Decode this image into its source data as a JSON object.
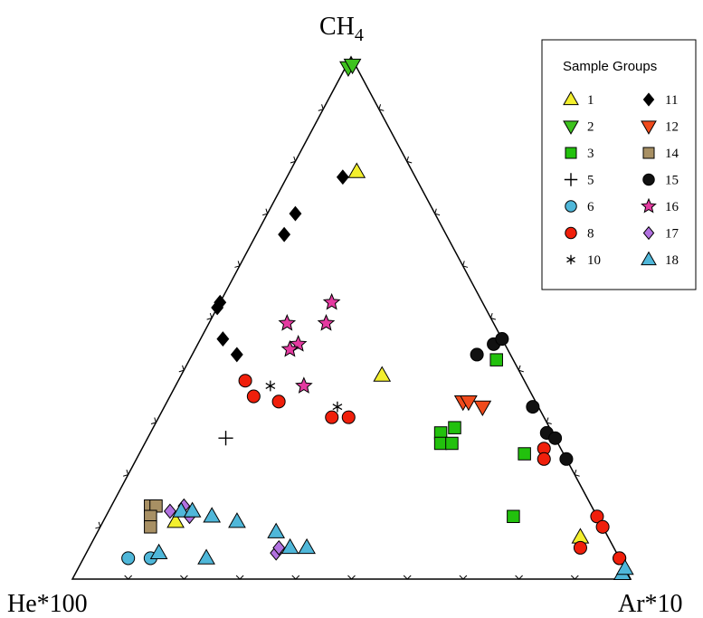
{
  "chart_data": {
    "type": "ternary-scatter",
    "apices": {
      "top": "CH4",
      "left": "He*100",
      "right": "Ar*10"
    },
    "legend": {
      "title": "Sample Groups",
      "placement": "top-right"
    },
    "series": [
      {
        "name": "1",
        "marker": "triangle-up",
        "color": "#f3ef2e",
        "points": [
          [
            0.78,
            0.1,
            0.12
          ],
          [
            0.39,
            0.25,
            0.36
          ],
          [
            0.11,
            0.76,
            0.13
          ],
          [
            0.08,
            0.05,
            0.87
          ]
        ]
      },
      {
        "name": "2",
        "marker": "triangle-down",
        "color": "#3ec21e",
        "points": [
          [
            0.98,
            0.015,
            0.005
          ],
          [
            0.985,
            0.005,
            0.01
          ]
        ]
      },
      {
        "name": "3",
        "marker": "square",
        "color": "#22c10d",
        "points": [
          [
            0.42,
            0.03,
            0.55
          ],
          [
            0.29,
            0.17,
            0.54
          ],
          [
            0.28,
            0.2,
            0.52
          ],
          [
            0.26,
            0.21,
            0.53
          ],
          [
            0.26,
            0.19,
            0.55
          ],
          [
            0.24,
            0.07,
            0.69
          ],
          [
            0.12,
            0.15,
            0.73
          ]
        ]
      },
      {
        "name": "5",
        "marker": "plus",
        "color": "#000000",
        "points": [
          [
            0.27,
            0.59,
            0.14
          ]
        ]
      },
      {
        "name": "6",
        "marker": "circle",
        "color": "#4fb7d9",
        "points": [
          [
            0.04,
            0.88,
            0.08
          ],
          [
            0.04,
            0.84,
            0.12
          ],
          [
            0.04,
            0.0,
            0.96
          ]
        ]
      },
      {
        "name": "8",
        "marker": "circle",
        "color": "#f01f0b",
        "points": [
          [
            0.38,
            0.5,
            0.12
          ],
          [
            0.35,
            0.5,
            0.15
          ],
          [
            0.34,
            0.46,
            0.2
          ],
          [
            0.31,
            0.38,
            0.31
          ],
          [
            0.31,
            0.35,
            0.34
          ],
          [
            0.25,
            0.03,
            0.72
          ],
          [
            0.23,
            0.04,
            0.73
          ],
          [
            0.12,
            0.0,
            0.88
          ],
          [
            0.1,
            0.0,
            0.9
          ],
          [
            0.06,
            0.06,
            0.88
          ],
          [
            0.04,
            0.0,
            0.96
          ]
        ]
      },
      {
        "name": "10",
        "marker": "star6",
        "color": "#000000",
        "points": [
          [
            0.37,
            0.46,
            0.17
          ],
          [
            0.33,
            0.36,
            0.31
          ]
        ]
      },
      {
        "name": "11",
        "marker": "diamond",
        "color": "#000000",
        "points": [
          [
            0.77,
            0.13,
            0.1
          ],
          [
            0.7,
            0.25,
            0.05
          ],
          [
            0.66,
            0.29,
            0.05
          ],
          [
            0.53,
            0.47,
            0.0
          ],
          [
            0.52,
            0.48,
            0.0
          ],
          [
            0.46,
            0.5,
            0.04
          ],
          [
            0.43,
            0.49,
            0.08
          ]
        ]
      },
      {
        "name": "12",
        "marker": "triangle-down",
        "color": "#f04a1c",
        "points": [
          [
            0.34,
            0.13,
            0.53
          ],
          [
            0.34,
            0.12,
            0.54
          ],
          [
            0.33,
            0.1,
            0.57
          ]
        ]
      },
      {
        "name": "14",
        "marker": "square",
        "color": "#a89064",
        "points": [
          [
            0.14,
            0.79,
            0.07
          ],
          [
            0.14,
            0.78,
            0.08
          ],
          [
            0.12,
            0.8,
            0.08
          ],
          [
            0.1,
            0.81,
            0.09
          ]
        ]
      },
      {
        "name": "15",
        "marker": "circle",
        "color": "#111111",
        "points": [
          [
            0.43,
            0.06,
            0.51
          ],
          [
            0.45,
            0.02,
            0.53
          ],
          [
            0.46,
            0.0,
            0.54
          ],
          [
            0.33,
            0.01,
            0.66
          ],
          [
            0.28,
            0.01,
            0.71
          ],
          [
            0.27,
            0.0,
            0.73
          ],
          [
            0.23,
            0.0,
            0.77
          ]
        ]
      },
      {
        "name": "16",
        "marker": "star5",
        "color": "#e43aa0",
        "points": [
          [
            0.53,
            0.27,
            0.2
          ],
          [
            0.49,
            0.3,
            0.21
          ],
          [
            0.49,
            0.37,
            0.14
          ],
          [
            0.45,
            0.37,
            0.18
          ],
          [
            0.44,
            0.39,
            0.17
          ],
          [
            0.37,
            0.4,
            0.23
          ]
        ]
      },
      {
        "name": "17",
        "marker": "diamond",
        "color": "#b271e0",
        "points": [
          [
            0.14,
            0.73,
            0.13
          ],
          [
            0.13,
            0.76,
            0.11
          ],
          [
            0.12,
            0.73,
            0.15
          ],
          [
            0.05,
            0.61,
            0.34
          ],
          [
            0.06,
            0.6,
            0.34
          ]
        ]
      },
      {
        "name": "18",
        "marker": "triangle-up",
        "color": "#4fb7d9",
        "points": [
          [
            0.13,
            0.74,
            0.13
          ],
          [
            0.13,
            0.72,
            0.15
          ],
          [
            0.12,
            0.69,
            0.19
          ],
          [
            0.11,
            0.65,
            0.24
          ],
          [
            0.09,
            0.59,
            0.32
          ],
          [
            0.06,
            0.55,
            0.39
          ],
          [
            0.05,
            0.82,
            0.13
          ],
          [
            0.04,
            0.74,
            0.22
          ],
          [
            0.06,
            0.58,
            0.36
          ],
          [
            0.01,
            0.01,
            0.98
          ],
          [
            0.02,
            0.0,
            0.98
          ]
        ]
      }
    ]
  }
}
